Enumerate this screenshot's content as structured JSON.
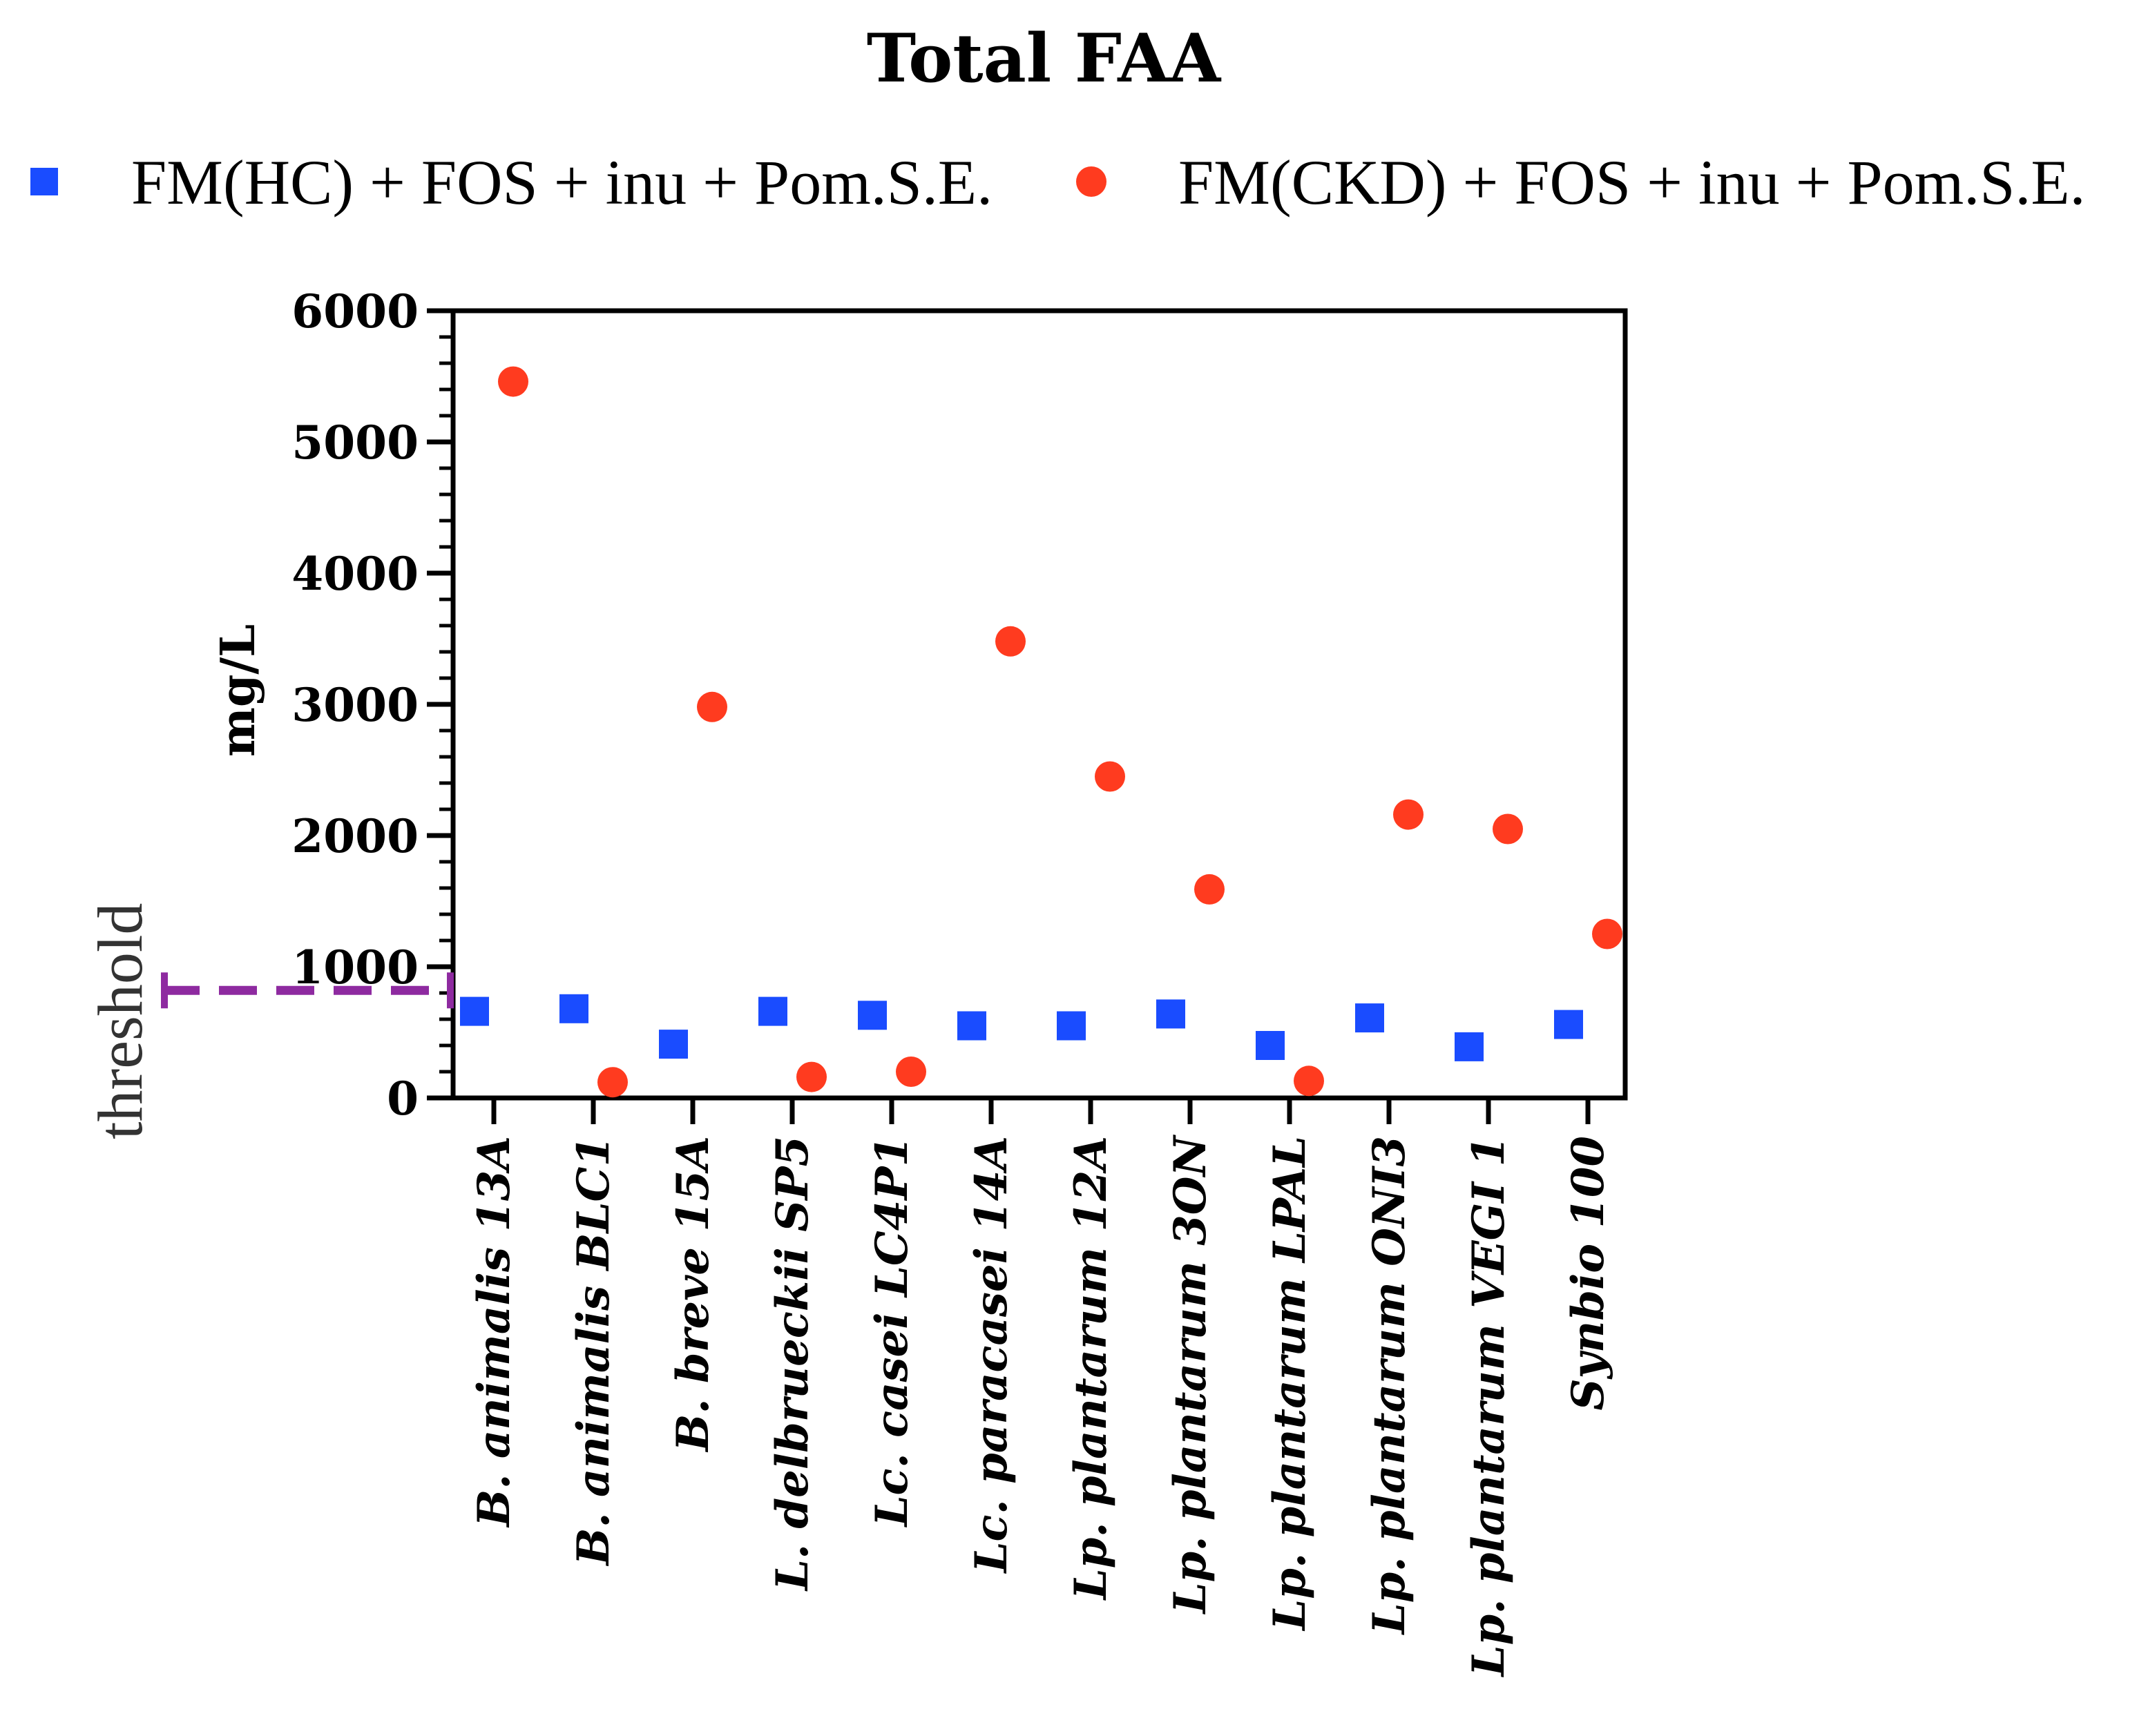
{
  "chart_data": {
    "type": "scatter",
    "title": "Total FAA",
    "xlabel": "",
    "ylabel": "mg/L",
    "ylim": [
      0,
      6000
    ],
    "yticks": [
      0,
      1000,
      2000,
      3000,
      4000,
      5000,
      6000
    ],
    "categories": [
      "B. animalis 13A",
      "B. animalis BLC1",
      "B. breve 15A",
      "L. delbrueckii SP5",
      "Lc. casei LC4P1",
      "Lc. paracasei 14A",
      "Lp. plantarum 12A",
      "Lp. plantarum 3ON",
      "Lp. plantarum LPAL",
      "Lp. plantarum ONI3",
      "Lp. plantarum VEGI 1",
      "Synbio 100"
    ],
    "series": [
      {
        "name": "FM(HC) + FOS + inu + Pom.S.E.",
        "marker": "square",
        "color": "#1a4cff",
        "values": [
          660,
          680,
          410,
          660,
          630,
          550,
          550,
          640,
          400,
          610,
          390,
          560
        ]
      },
      {
        "name": "FM(CKD) + FOS + inu + Pom.S.E.",
        "marker": "circle",
        "color": "#ff3b1f",
        "values": [
          5460,
          120,
          2980,
          160,
          200,
          3480,
          2450,
          1590,
          130,
          2160,
          2050,
          1250
        ]
      }
    ],
    "threshold": {
      "label": "threshold",
      "value": 820,
      "color": "#8e2aa0"
    },
    "legend": "top"
  }
}
